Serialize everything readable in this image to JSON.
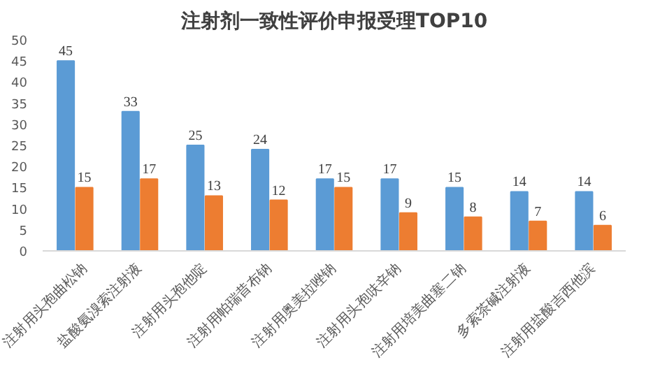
{
  "chart_data": {
    "type": "bar",
    "title": "注射剂一致性评价申报受理TOP10",
    "categories": [
      "注射用头孢曲松钠",
      "盐酸氨溴索注射液",
      "注射用头孢他啶",
      "注射用帕瑞昔布钠",
      "注射用奥美拉唑钠",
      "注射用头孢呋辛钠",
      "注射用培美曲塞二钠",
      "多索茶碱注射液",
      "注射用盐酸吉西他滨"
    ],
    "series": [
      {
        "color": "#5b9bd5",
        "values": [
          45,
          33,
          25,
          24,
          17,
          17,
          15,
          14,
          14
        ]
      },
      {
        "color": "#ed7d31",
        "values": [
          15,
          17,
          13,
          12,
          15,
          9,
          8,
          7,
          6
        ]
      }
    ],
    "ylim": [
      0,
      50
    ],
    "yticks": [
      0,
      5,
      10,
      15,
      20,
      25,
      30,
      35,
      40,
      45,
      50
    ],
    "grid": false,
    "data_labels": true
  }
}
